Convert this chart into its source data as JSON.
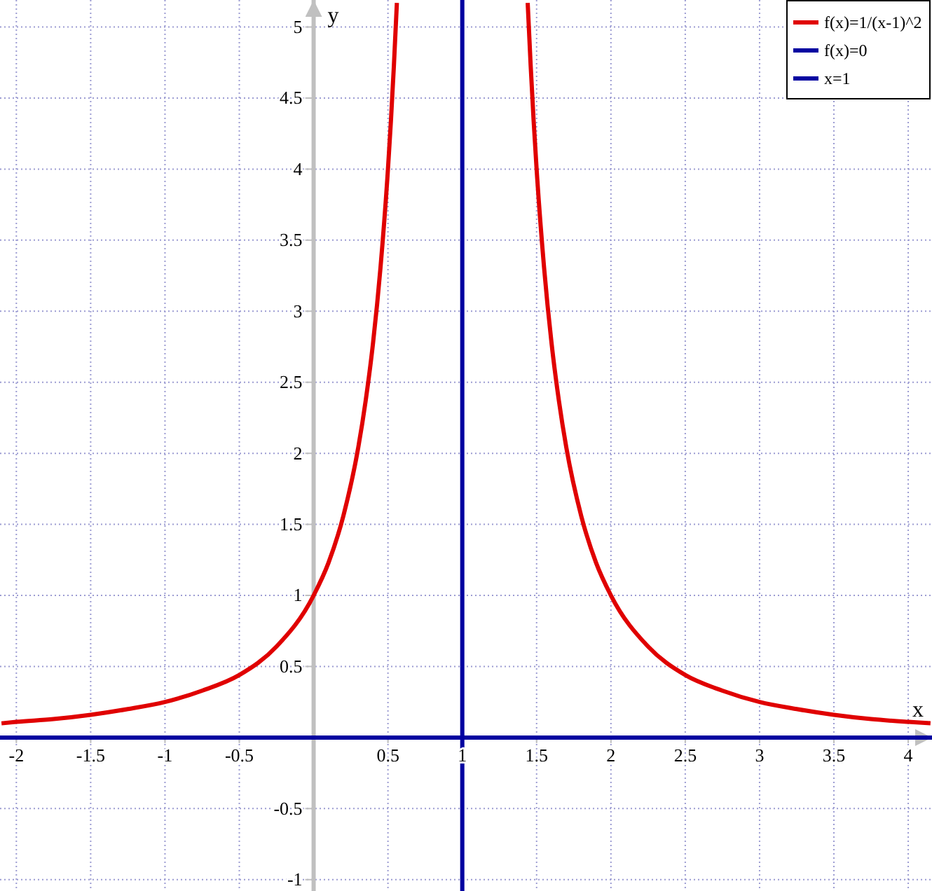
{
  "chart_data": {
    "type": "line",
    "xlabel": "x",
    "ylabel": "y",
    "xlim": [
      -2.11,
      4.16
    ],
    "ylim": [
      -1.08,
      5.19
    ],
    "xticks": [
      -2,
      -1.5,
      -1,
      -0.5,
      0.5,
      1,
      1.5,
      2,
      2.5,
      3,
      3.5,
      4
    ],
    "yticks": [
      -1,
      -0.5,
      0.5,
      1,
      1.5,
      2,
      2.5,
      3,
      3.5,
      4,
      4.5,
      5
    ],
    "grid": true,
    "legend": "top right",
    "series": [
      {
        "name": "f(x)=1/(x-1)^2",
        "color": "#e00000",
        "x": [
          -2.1,
          -2,
          -1.75,
          -1.5,
          -1.25,
          -1,
          -0.75,
          -0.5,
          -0.25,
          0,
          0.1,
          0.2,
          0.3,
          0.35,
          0.4,
          0.45,
          0.5,
          0.52,
          0.54,
          0.56,
          1,
          1.44,
          1.46,
          1.48,
          1.5,
          1.55,
          1.6,
          1.65,
          1.7,
          1.8,
          1.9,
          2,
          2.25,
          2.5,
          2.75,
          3,
          3.25,
          3.5,
          3.75,
          4,
          4.15
        ],
        "values": [
          0.1,
          0.11,
          0.13,
          0.16,
          0.2,
          0.25,
          0.33,
          0.44,
          0.64,
          1,
          1.23,
          1.56,
          2.04,
          2.37,
          2.78,
          3.31,
          4,
          4.34,
          4.73,
          5.17,
          null,
          5.17,
          4.73,
          4.34,
          4,
          3.31,
          2.78,
          2.37,
          2.04,
          1.56,
          1.23,
          1,
          0.64,
          0.44,
          0.33,
          0.25,
          0.2,
          0.16,
          0.13,
          0.11,
          0.1
        ]
      },
      {
        "name": "f(x)=0",
        "color": "#0000a0",
        "x": [
          -2.11,
          4.16
        ],
        "values": [
          0,
          0
        ]
      },
      {
        "name": "x=1",
        "color": "#0000a0",
        "x": [
          1,
          1
        ],
        "values": [
          -1.08,
          5.19
        ]
      }
    ]
  }
}
